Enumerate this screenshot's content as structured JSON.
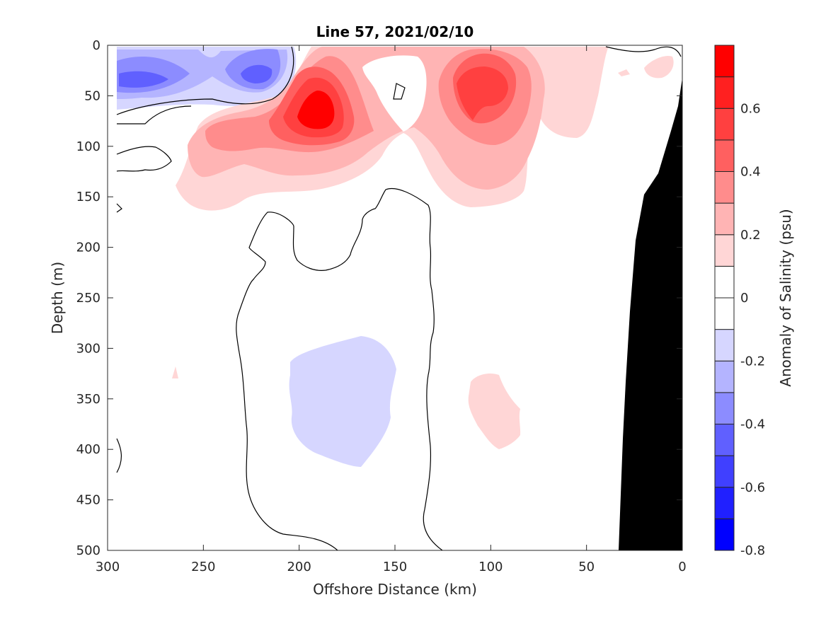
{
  "chart_data": {
    "type": "heatmap",
    "title": "Line 57, 2021/02/10",
    "xlabel": "Offshore Distance (km)",
    "ylabel": "Depth (m)",
    "xlim": [
      300,
      0
    ],
    "ylim": [
      0,
      500
    ],
    "x_ticks": [
      "300",
      "250",
      "200",
      "150",
      "100",
      "50",
      "0"
    ],
    "y_ticks": [
      "0",
      "50",
      "100",
      "150",
      "200",
      "250",
      "300",
      "350",
      "400",
      "450",
      "500"
    ],
    "colorbar": {
      "label": "Anomaly of Salinity (psu)",
      "range": [
        -0.8,
        0.8
      ],
      "ticks": [
        "-0.8",
        "-0.6",
        "-0.4",
        "-0.2",
        "0",
        "0.2",
        "0.4",
        "0.6"
      ],
      "levels": [
        {
          "lo": -0.8,
          "hi": -0.7,
          "color": "#0000ff"
        },
        {
          "lo": -0.7,
          "hi": -0.6,
          "color": "#2020ff"
        },
        {
          "lo": -0.6,
          "hi": -0.5,
          "color": "#4040ff"
        },
        {
          "lo": -0.5,
          "hi": -0.4,
          "color": "#6060ff"
        },
        {
          "lo": -0.4,
          "hi": -0.3,
          "color": "#8c8cff"
        },
        {
          "lo": -0.3,
          "hi": -0.2,
          "color": "#b4b4ff"
        },
        {
          "lo": -0.2,
          "hi": -0.1,
          "color": "#d6d6ff"
        },
        {
          "lo": -0.1,
          "hi": 0.0,
          "color": "#ffffff"
        },
        {
          "lo": 0.0,
          "hi": 0.1,
          "color": "#ffffff"
        },
        {
          "lo": 0.1,
          "hi": 0.2,
          "color": "#ffd6d6"
        },
        {
          "lo": 0.2,
          "hi": 0.3,
          "color": "#ffb4b4"
        },
        {
          "lo": 0.3,
          "hi": 0.4,
          "color": "#ff8c8c"
        },
        {
          "lo": 0.4,
          "hi": 0.5,
          "color": "#ff6060"
        },
        {
          "lo": 0.5,
          "hi": 0.6,
          "color": "#ff4040"
        },
        {
          "lo": 0.6,
          "hi": 0.7,
          "color": "#ff2020"
        },
        {
          "lo": 0.7,
          "hi": 0.8,
          "color": "#ff0000"
        }
      ]
    },
    "features": [
      {
        "name": "salinity-maximum-core",
        "x_km": 190,
        "depth_m": 65,
        "anomaly": 0.65
      },
      {
        "name": "salinity-secondary-core",
        "x_km": 100,
        "depth_m": 45,
        "anomaly": 0.5
      },
      {
        "name": "salinity-minimum-core",
        "x_km": 280,
        "depth_m": 35,
        "anomaly": -0.45
      },
      {
        "name": "salinity-minimum-core-2",
        "x_km": 222,
        "depth_m": 28,
        "anomaly": -0.45
      },
      {
        "name": "fresh-anomaly-deep",
        "x_km": 165,
        "depth_m": 350,
        "anomaly": -0.15
      },
      {
        "name": "salty-anomaly-deep",
        "x_km": 100,
        "depth_m": 370,
        "anomaly": 0.15
      }
    ],
    "bathymetry_color": "#000000",
    "grid": false
  }
}
